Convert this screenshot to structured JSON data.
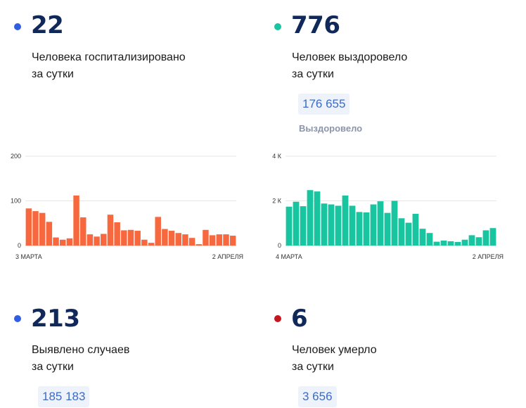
{
  "hospitalized": {
    "value": "22",
    "label_line1": "Человека госпитализировано",
    "label_line2": "за сутки",
    "color": "#2f5fe0"
  },
  "recovered": {
    "value": "776",
    "label_line1": "Человек выздоровело",
    "label_line2": "за сутки",
    "total": "176 655",
    "total_caption": "Выздоровело",
    "color": "#19c4a0"
  },
  "cases": {
    "value": "213",
    "label_line1": "Выявлено случаев",
    "label_line2": "за сутки",
    "total": "185 183",
    "color": "#2f5fe0"
  },
  "deaths": {
    "value": "6",
    "label_line1": "Человек умерло",
    "label_line2": "за сутки",
    "total": "3 656",
    "color": "#c6161e"
  },
  "chart_data": [
    {
      "type": "bar",
      "color": "#f7683f",
      "ylim": [
        0,
        200
      ],
      "y_ticks": [
        {
          "value": 0,
          "label": "0"
        },
        {
          "value": 100,
          "label": "100"
        },
        {
          "value": 200,
          "label": "200"
        }
      ],
      "x_labels": [
        "3 МАРТА",
        "2 АПРЕЛЯ"
      ],
      "values": [
        83,
        77,
        73,
        53,
        18,
        13,
        16,
        112,
        63,
        25,
        20,
        26,
        69,
        52,
        34,
        35,
        33,
        13,
        6,
        64,
        37,
        33,
        28,
        25,
        17,
        3,
        35,
        23,
        25,
        25,
        22
      ]
    },
    {
      "type": "bar",
      "color": "#19c4a0",
      "ylim": [
        0,
        4000
      ],
      "y_ticks": [
        {
          "value": 0,
          "label": "0"
        },
        {
          "value": 2000,
          "label": "2 К"
        },
        {
          "value": 4000,
          "label": "4 К"
        }
      ],
      "x_labels": [
        "4 МАРТА",
        "2 АПРЕЛЯ"
      ],
      "values": [
        1740,
        1960,
        1760,
        2480,
        2420,
        1880,
        1840,
        1780,
        2240,
        1780,
        1500,
        1480,
        1840,
        1980,
        1460,
        2000,
        1220,
        1020,
        1420,
        750,
        560,
        170,
        220,
        190,
        160,
        260,
        460,
        370,
        680,
        780
      ]
    }
  ]
}
